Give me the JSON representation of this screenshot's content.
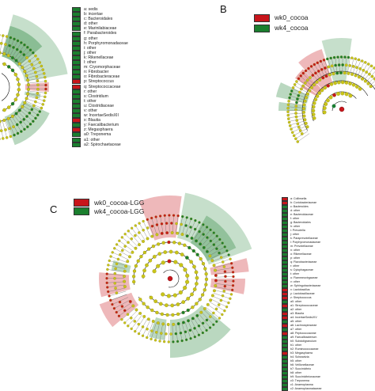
{
  "panels": {
    "B": {
      "letter": "B",
      "groups": [
        {
          "label": "wk0_cocoa",
          "color": "#c8151b"
        },
        {
          "label": "wk4_cocoa",
          "color": "#1a7f2e"
        }
      ]
    },
    "C": {
      "letter": "C",
      "groups": [
        {
          "label": "wk0_cocoa-LGG",
          "color": "#c8151b"
        },
        {
          "label": "wk4_cocoa-LGG",
          "color": "#1a7f2e"
        }
      ]
    }
  },
  "legend_a": [
    {
      "text": "a: sedis",
      "color": "#1a7f2e"
    },
    {
      "text": "b: incertae",
      "color": "#1a7f2e"
    },
    {
      "text": "c: Bacteroidales",
      "color": "#1a7f2e"
    },
    {
      "text": "d: other",
      "color": "#1a7f2e"
    },
    {
      "text": "e: Marinilabiaceae",
      "color": "#1a7f2e"
    },
    {
      "text": "f: Parabacteroides",
      "color": "#1a7f2e"
    },
    {
      "text": "g: other",
      "color": "#1a7f2e"
    },
    {
      "text": "h: Porphyromonadaceae",
      "color": "#1a7f2e"
    },
    {
      "text": "i: other",
      "color": "#1a7f2e"
    },
    {
      "text": "j: other",
      "color": "#1a7f2e"
    },
    {
      "text": "k: Rikenellaceae",
      "color": "#1a7f2e"
    },
    {
      "text": "l: other",
      "color": "#1a7f2e"
    },
    {
      "text": "m: Cryomorphaceae",
      "color": "#1a7f2e"
    },
    {
      "text": "n: Fibrobacter",
      "color": "#1a7f2e"
    },
    {
      "text": "o: Fibrobacteraceae",
      "color": "#1a7f2e"
    },
    {
      "text": "p: Streptococcus",
      "color": "#c8151b"
    },
    {
      "text": "q: Streptococcaceae",
      "color": "#c8151b"
    },
    {
      "text": "r: other",
      "color": "#1a7f2e"
    },
    {
      "text": "s: Clostridium",
      "color": "#1a7f2e"
    },
    {
      "text": "t: other",
      "color": "#1a7f2e"
    },
    {
      "text": "u: Clostridiaceae",
      "color": "#1a7f2e"
    },
    {
      "text": "v: other",
      "color": "#1a7f2e"
    },
    {
      "text": "w: IncertaeSedisXII",
      "color": "#1a7f2e"
    },
    {
      "text": "x: Blautia",
      "color": "#c8151b"
    },
    {
      "text": "y: Faecalibacterium",
      "color": "#1a7f2e"
    },
    {
      "text": "z: Megasphaera",
      "color": "#c8151b"
    },
    {
      "text": "a0: Treponema",
      "color": "#1a7f2e"
    },
    {
      "text": "a1: other",
      "color": "#1a7f2e"
    },
    {
      "text": "a2: Spirochaetaceae",
      "color": "#1a7f2e"
    }
  ],
  "legend_c": [
    {
      "text": "a: Collinsella",
      "color": "#c8151b"
    },
    {
      "text": "b: Coriobacteriaceae",
      "color": "#c8151b"
    },
    {
      "text": "c: Bacteroides",
      "color": "#1a7f2e"
    },
    {
      "text": "d: other",
      "color": "#1a7f2e"
    },
    {
      "text": "e: Bacteroidaceae",
      "color": "#1a7f2e"
    },
    {
      "text": "f: other",
      "color": "#1a7f2e"
    },
    {
      "text": "g: Bacteroidales",
      "color": "#1a7f2e"
    },
    {
      "text": "h: other",
      "color": "#1a7f2e"
    },
    {
      "text": "i: Prevotella",
      "color": "#1a7f2e"
    },
    {
      "text": "j: other",
      "color": "#1a7f2e"
    },
    {
      "text": "k: Paraprevotellaceae",
      "color": "#1a7f2e"
    },
    {
      "text": "l: Porphyromonadaceae",
      "color": "#1a7f2e"
    },
    {
      "text": "m: Prevotellaceae",
      "color": "#1a7f2e"
    },
    {
      "text": "n: other",
      "color": "#1a7f2e"
    },
    {
      "text": "o: Rikenellaceae",
      "color": "#1a7f2e"
    },
    {
      "text": "p: other",
      "color": "#1a7f2e"
    },
    {
      "text": "q: Flavobacteriaceae",
      "color": "#1a7f2e"
    },
    {
      "text": "r: other",
      "color": "#1a7f2e"
    },
    {
      "text": "s: Cytophagaceae",
      "color": "#1a7f2e"
    },
    {
      "text": "t: other",
      "color": "#1a7f2e"
    },
    {
      "text": "u: Flammeovirgaceae",
      "color": "#1a7f2e"
    },
    {
      "text": "v: other",
      "color": "#1a7f2e"
    },
    {
      "text": "w: Sphingobacteriaceae",
      "color": "#1a7f2e"
    },
    {
      "text": "x: Lactobacillus",
      "color": "#c8151b"
    },
    {
      "text": "y: Lactobacillaceae",
      "color": "#c8151b"
    },
    {
      "text": "z: Streptococcus",
      "color": "#c8151b"
    },
    {
      "text": "a0: other",
      "color": "#1a7f2e"
    },
    {
      "text": "a1: Streptococcaceae",
      "color": "#c8151b"
    },
    {
      "text": "a2: other",
      "color": "#1a7f2e"
    },
    {
      "text": "a3: Blautia",
      "color": "#c8151b"
    },
    {
      "text": "a4: IncertaeSedisXIV",
      "color": "#c8151b"
    },
    {
      "text": "a5: other",
      "color": "#1a7f2e"
    },
    {
      "text": "a6: Lachnospiraceae",
      "color": "#c8151b"
    },
    {
      "text": "a7: other",
      "color": "#1a7f2e"
    },
    {
      "text": "a8: Peptococcaceae",
      "color": "#c8151b"
    },
    {
      "text": "a9: Faecalibacterium",
      "color": "#1a7f2e"
    },
    {
      "text": "b0: Subdoligranulum",
      "color": "#1a7f2e"
    },
    {
      "text": "b1: other",
      "color": "#1a7f2e"
    },
    {
      "text": "b2: Ruminococcaceae",
      "color": "#1a7f2e"
    },
    {
      "text": "b3: Megasphaera",
      "color": "#c8151b"
    },
    {
      "text": "b4: Schwartzia",
      "color": "#1a7f2e"
    },
    {
      "text": "b5: other",
      "color": "#1a7f2e"
    },
    {
      "text": "b6: Veillonellaceae",
      "color": "#1a7f2e"
    },
    {
      "text": "b7: Succinivibrio",
      "color": "#1a7f2e"
    },
    {
      "text": "b8: other",
      "color": "#1a7f2e"
    },
    {
      "text": "b9: Succinivibrionaceae",
      "color": "#1a7f2e"
    },
    {
      "text": "c0: Treponema",
      "color": "#1a7f2e"
    },
    {
      "text": "c1: Anaeroplasma",
      "color": "#1a7f2e"
    },
    {
      "text": "c2: Anaeroplasmataceae",
      "color": "#1a7f2e"
    }
  ]
}
